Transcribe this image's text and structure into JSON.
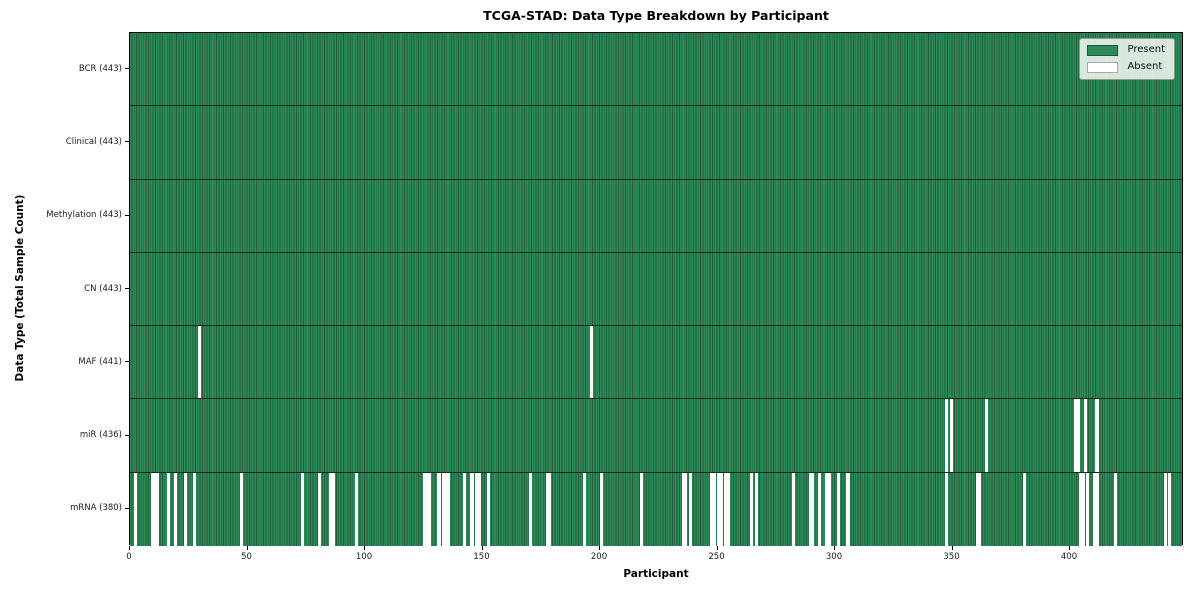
{
  "chart_data": {
    "type": "heatmap",
    "title": "TCGA-STAD: Data Type Breakdown by Participant",
    "xlabel": "Participant",
    "ylabel": "Data Type (Total Sample Count)",
    "x_ticks": [
      0,
      50,
      100,
      150,
      200,
      250,
      300,
      350,
      400
    ],
    "x_range": [
      0,
      443
    ],
    "total_participants": 443,
    "grid": "row-separators-only",
    "colors": {
      "present": "#2e8b57",
      "present_edge": "#1f5f3d",
      "absent": "#ffffff",
      "row_separator": "#0a1a0e",
      "plot_border": "#000000"
    },
    "legend": {
      "position": "upper right",
      "entries": [
        {
          "label": "Present",
          "color": "#2e8b57"
        },
        {
          "label": "Absent",
          "color": "#ffffff"
        }
      ]
    },
    "rows": [
      {
        "label": "BCR (443)",
        "data_type": "BCR",
        "present_count": 443,
        "absent_count": 0,
        "absent_participants": []
      },
      {
        "label": "Clinical (443)",
        "data_type": "Clinical",
        "present_count": 443,
        "absent_count": 0,
        "absent_participants": []
      },
      {
        "label": "Methylation (443)",
        "data_type": "Methylation",
        "present_count": 443,
        "absent_count": 0,
        "absent_participants": []
      },
      {
        "label": "CN (443)",
        "data_type": "CN",
        "present_count": 443,
        "absent_count": 0,
        "absent_participants": []
      },
      {
        "label": "MAF (441)",
        "data_type": "MAF",
        "present_count": 441,
        "absent_count": 2,
        "absent_participants": [
          29,
          196
        ]
      },
      {
        "label": "miR (436)",
        "data_type": "miR",
        "present_count": 436,
        "absent_count": 7,
        "absent_participants": [
          347,
          349,
          364,
          402,
          403,
          406,
          411
        ]
      },
      {
        "label": "mRNA (380)",
        "data_type": "mRNA",
        "present_count": 380,
        "absent_count": 63,
        "absent_participants": [
          2,
          9,
          10,
          11,
          16,
          19,
          23,
          27,
          47,
          73,
          80,
          85,
          86,
          96,
          125,
          126,
          127,
          131,
          133,
          134,
          135,
          142,
          145,
          147,
          148,
          152,
          170,
          177,
          178,
          193,
          200,
          217,
          235,
          236,
          238,
          247,
          248,
          250,
          251,
          253,
          254,
          264,
          266,
          282,
          289,
          290,
          293,
          296,
          297,
          301,
          305,
          347,
          360,
          361,
          380,
          404,
          405,
          407,
          410,
          411,
          419,
          440,
          442
        ]
      }
    ]
  }
}
